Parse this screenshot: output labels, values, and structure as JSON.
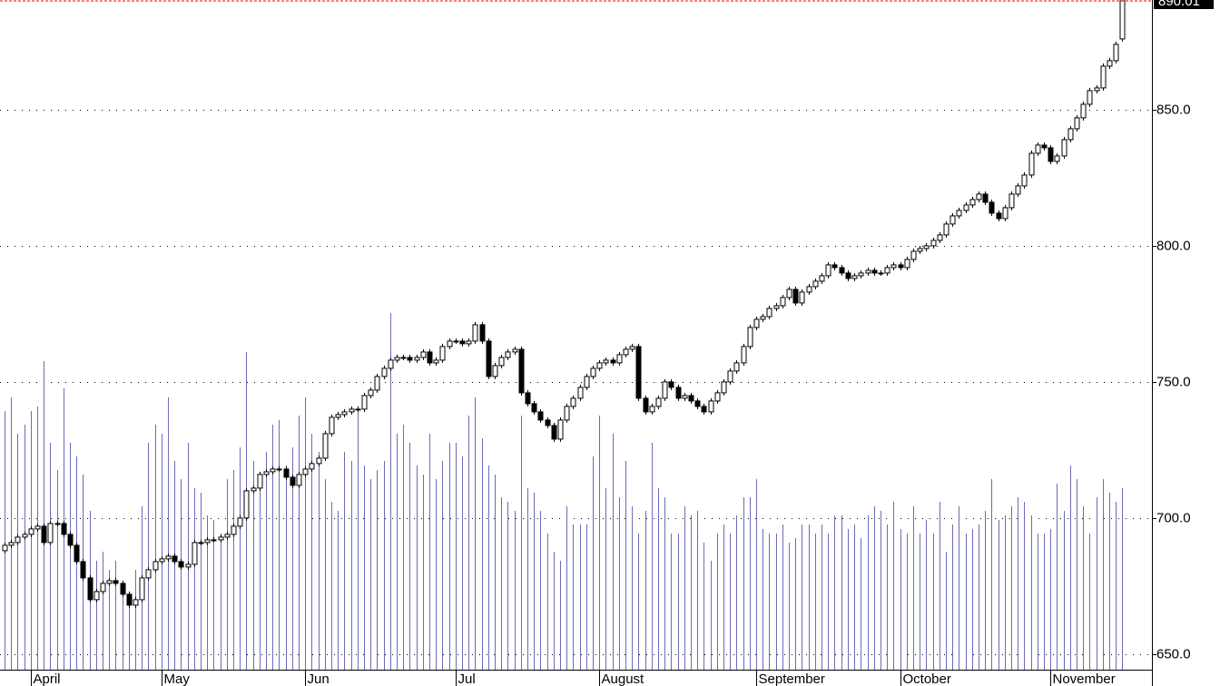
{
  "chart_data": {
    "type": "candlestick",
    "open": [
      688,
      690,
      691,
      693,
      694,
      696,
      697,
      691,
      698,
      698,
      694,
      690,
      684,
      678,
      670,
      673,
      676,
      677,
      676,
      672,
      668,
      670,
      678,
      681,
      684,
      685,
      686,
      684,
      682,
      683,
      691,
      691,
      692,
      692,
      693,
      694,
      697,
      700,
      710,
      711,
      716,
      717,
      718,
      718,
      715,
      712,
      716,
      718,
      720,
      722,
      731,
      737,
      738,
      739,
      740,
      740,
      745,
      747,
      752,
      755,
      758,
      759,
      759,
      758,
      759,
      761,
      757,
      758,
      763,
      765,
      765,
      764,
      765,
      771,
      765,
      752,
      756,
      759,
      761,
      762,
      746,
      742,
      739,
      736,
      734,
      729,
      736,
      741,
      744,
      748,
      752,
      755,
      757,
      758,
      757,
      760,
      762,
      763,
      744,
      739,
      741,
      744,
      750,
      748,
      744,
      745,
      743,
      741,
      739,
      743,
      746,
      750,
      754,
      757,
      763,
      770,
      773,
      774,
      777,
      778,
      781,
      784,
      779,
      783,
      785,
      787,
      789,
      793,
      792,
      790,
      788,
      789,
      790,
      791,
      790,
      790,
      792,
      793,
      792,
      795,
      798,
      799,
      800,
      802,
      804,
      808,
      811,
      813,
      815,
      817,
      819,
      816,
      812,
      810,
      814,
      819,
      822,
      826,
      834,
      837,
      836,
      831,
      833,
      839,
      843,
      847,
      852,
      857,
      858,
      866,
      868,
      876
    ],
    "high": [
      691,
      692,
      694,
      695,
      697,
      698,
      698,
      699,
      699,
      699,
      695,
      691,
      685,
      679,
      674,
      677,
      678,
      678,
      677,
      673,
      671,
      679,
      682,
      685,
      686,
      687,
      687,
      685,
      684,
      692,
      692,
      693,
      693,
      694,
      695,
      698,
      701,
      711,
      712,
      717,
      718,
      719,
      719,
      719,
      716,
      717,
      719,
      721,
      723,
      732,
      738,
      739,
      740,
      741,
      741,
      746,
      748,
      753,
      756,
      759,
      760,
      760,
      760,
      760,
      762,
      762,
      759,
      764,
      766,
      766,
      766,
      766,
      772,
      772,
      766,
      757,
      760,
      762,
      763,
      763,
      747,
      743,
      740,
      737,
      735,
      737,
      742,
      745,
      749,
      753,
      756,
      758,
      759,
      759,
      761,
      763,
      764,
      764,
      745,
      742,
      745,
      751,
      751,
      749,
      746,
      746,
      744,
      742,
      744,
      747,
      751,
      755,
      758,
      764,
      771,
      774,
      775,
      778,
      779,
      782,
      785,
      785,
      784,
      786,
      788,
      790,
      794,
      794,
      793,
      791,
      790,
      791,
      792,
      792,
      791,
      793,
      794,
      794,
      796,
      799,
      800,
      801,
      803,
      805,
      809,
      812,
      814,
      816,
      818,
      820,
      820,
      817,
      813,
      815,
      820,
      823,
      827,
      835,
      838,
      838,
      837,
      834,
      840,
      844,
      848,
      853,
      858,
      859,
      867,
      869,
      875,
      890.01
    ],
    "low": [
      687,
      689,
      690,
      692,
      693,
      695,
      690,
      690,
      697,
      693,
      689,
      683,
      677,
      669,
      669,
      672,
      675,
      675,
      671,
      667,
      667,
      669,
      677,
      680,
      683,
      684,
      683,
      681,
      681,
      682,
      690,
      690,
      691,
      691,
      692,
      693,
      696,
      699,
      709,
      710,
      715,
      716,
      717,
      714,
      711,
      711,
      715,
      717,
      719,
      721,
      730,
      736,
      737,
      738,
      739,
      739,
      744,
      746,
      751,
      754,
      757,
      758,
      757,
      757,
      758,
      756,
      756,
      757,
      762,
      764,
      763,
      763,
      764,
      764,
      751,
      751,
      755,
      758,
      760,
      745,
      741,
      738,
      735,
      733,
      728,
      728,
      735,
      740,
      743,
      747,
      751,
      754,
      756,
      756,
      756,
      759,
      761,
      743,
      738,
      738,
      740,
      743,
      747,
      743,
      743,
      742,
      740,
      738,
      738,
      742,
      745,
      749,
      753,
      756,
      762,
      769,
      772,
      773,
      776,
      777,
      780,
      778,
      778,
      782,
      784,
      786,
      788,
      791,
      789,
      787,
      787,
      788,
      789,
      789,
      789,
      789,
      791,
      791,
      791,
      794,
      797,
      798,
      799,
      801,
      803,
      807,
      810,
      812,
      814,
      816,
      815,
      811,
      809,
      809,
      813,
      818,
      821,
      825,
      833,
      835,
      830,
      830,
      832,
      838,
      842,
      846,
      851,
      856,
      857,
      865,
      867,
      875
    ],
    "close": [
      690,
      691,
      693,
      694,
      696,
      697,
      691,
      698,
      698,
      694,
      690,
      684,
      678,
      670,
      673,
      676,
      677,
      676,
      672,
      668,
      670,
      678,
      681,
      684,
      685,
      686,
      684,
      682,
      683,
      691,
      691,
      692,
      692,
      693,
      694,
      697,
      700,
      710,
      711,
      716,
      717,
      718,
      718,
      715,
      712,
      716,
      718,
      720,
      722,
      731,
      737,
      738,
      739,
      740,
      740,
      745,
      747,
      752,
      755,
      758,
      759,
      759,
      758,
      759,
      761,
      757,
      758,
      763,
      765,
      765,
      764,
      765,
      771,
      765,
      752,
      756,
      759,
      761,
      762,
      746,
      742,
      739,
      736,
      734,
      729,
      736,
      741,
      744,
      748,
      752,
      755,
      757,
      758,
      757,
      760,
      762,
      763,
      744,
      739,
      741,
      744,
      750,
      748,
      744,
      745,
      743,
      741,
      739,
      743,
      746,
      750,
      754,
      757,
      763,
      770,
      773,
      774,
      777,
      778,
      781,
      784,
      779,
      783,
      785,
      787,
      789,
      793,
      792,
      790,
      788,
      789,
      790,
      791,
      790,
      790,
      792,
      793,
      792,
      795,
      798,
      799,
      800,
      802,
      804,
      808,
      811,
      813,
      815,
      817,
      819,
      816,
      812,
      810,
      814,
      819,
      822,
      826,
      834,
      837,
      836,
      831,
      833,
      839,
      843,
      847,
      852,
      857,
      858,
      866,
      868,
      874,
      890.01
    ],
    "volume": [
      285,
      300,
      260,
      270,
      285,
      290,
      340,
      250,
      220,
      310,
      250,
      235,
      215,
      175,
      120,
      130,
      110,
      120,
      95,
      85,
      110,
      180,
      250,
      270,
      260,
      300,
      230,
      210,
      250,
      200,
      195,
      170,
      165,
      150,
      210,
      220,
      245,
      350,
      230,
      205,
      240,
      270,
      275,
      225,
      245,
      280,
      300,
      260,
      240,
      210,
      185,
      175,
      240,
      230,
      290,
      225,
      210,
      220,
      230,
      393,
      260,
      270,
      250,
      225,
      215,
      260,
      210,
      230,
      250,
      250,
      235,
      280,
      300,
      255,
      225,
      215,
      190,
      185,
      175,
      280,
      200,
      195,
      175,
      150,
      130,
      120,
      180,
      160,
      160,
      160,
      235,
      280,
      200,
      260,
      190,
      230,
      180,
      150,
      175,
      250,
      200,
      190,
      150,
      150,
      180,
      170,
      175,
      140,
      120,
      150,
      160,
      150,
      170,
      190,
      190,
      210,
      155,
      150,
      150,
      160,
      140,
      145,
      160,
      160,
      150,
      160,
      150,
      170,
      170,
      155,
      160,
      145,
      170,
      180,
      175,
      160,
      185,
      155,
      150,
      180,
      150,
      165,
      150,
      185,
      130,
      160,
      180,
      150,
      155,
      160,
      175,
      210,
      165,
      170,
      180,
      190,
      185,
      170,
      150,
      150,
      155,
      205,
      175,
      225,
      210,
      180,
      150,
      190,
      210,
      195,
      185,
      200
    ],
    "xlim": [
      -0.7,
      175.4
    ],
    "xticks": [
      {
        "value": 4,
        "label": "April"
      },
      {
        "value": 24,
        "label": "May"
      },
      {
        "value": 46,
        "label": "Jun"
      },
      {
        "value": 69,
        "label": "Jul"
      },
      {
        "value": 91,
        "label": "August"
      },
      {
        "value": 115,
        "label": "September"
      },
      {
        "value": 137,
        "label": "October"
      },
      {
        "value": 160,
        "label": "November"
      }
    ],
    "ylim": [
      644.3,
      890.3
    ],
    "yticks": [
      {
        "value": 650,
        "label": "650.0"
      },
      {
        "value": 700,
        "label": "700.0"
      },
      {
        "value": 750,
        "label": "750.0"
      },
      {
        "value": 800,
        "label": "800.0"
      },
      {
        "value": 850,
        "label": "850.0"
      }
    ],
    "grid": true,
    "up_color": "#ffffff",
    "down_color": "#000000",
    "volume_color": "#6b6bb8",
    "last_price_color": "#ff0000"
  }
}
